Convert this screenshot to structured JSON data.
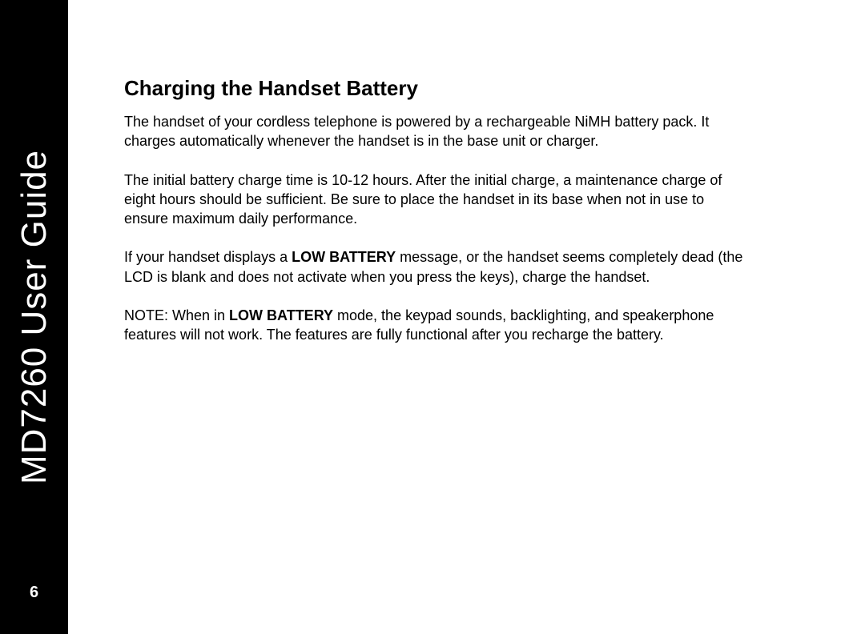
{
  "sidebar": {
    "title": "MD7260 User Guide",
    "page_number": "6"
  },
  "content": {
    "heading": "Charging the Handset Battery",
    "p1_a": "The handset of your cordless telephone is powered by a rechargeable NiMH battery pack. It charges automatically whenever the handset is in the base unit or charger.",
    "p2_a": "The initial battery charge time is 10-12 hours. After the initial charge, a maintenance charge of eight hours should be sufficient. Be sure to place the handset in its base when not in use to ensure maximum daily performance.",
    "p3_a": "If your handset displays a ",
    "p3_bold1": "LOW BATTERY",
    "p3_b": " message, or the handset seems completely dead (the LCD is blank and does not activate when you press the keys), charge the handset.",
    "p4_a": "NOTE: When in ",
    "p4_bold1": "LOW BATTERY",
    "p4_b": " mode, the keypad sounds, backlighting, and speakerphone features will not work. The features are fully functional after you recharge the battery."
  },
  "style": {
    "page_bg": "#ffffff",
    "sidebar_bg": "#000000",
    "sidebar_fg": "#ffffff",
    "text_color": "#000000",
    "heading_fontsize": 26,
    "body_fontsize": 18,
    "sidebar_title_fontsize": 44,
    "page_number_fontsize": 20
  }
}
